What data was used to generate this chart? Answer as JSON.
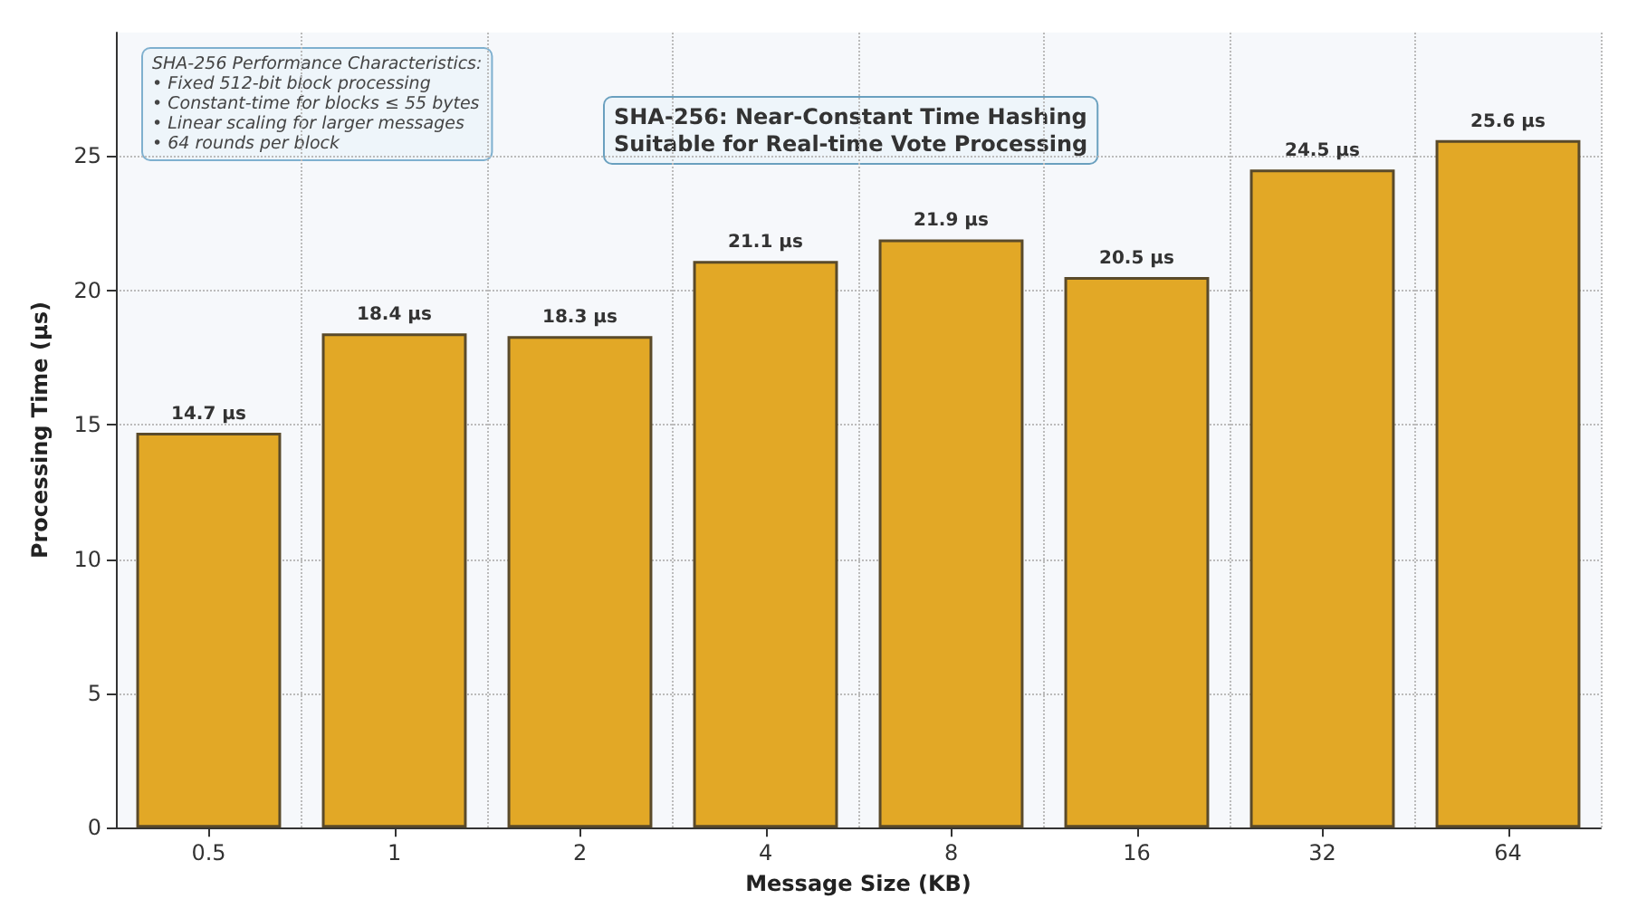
{
  "chart_data": {
    "type": "bar",
    "xlabel": "Message Size (KB)",
    "ylabel": "Processing Time (μs)",
    "categories": [
      "0.5",
      "1",
      "2",
      "4",
      "8",
      "16",
      "32",
      "64"
    ],
    "values": [
      14.7,
      18.4,
      18.3,
      21.1,
      21.9,
      20.5,
      24.5,
      25.6
    ],
    "value_labels": [
      "14.7 μs",
      "18.4 μs",
      "18.3 μs",
      "21.1 μs",
      "21.9 μs",
      "20.5 μs",
      "24.5 μs",
      "25.6 μs"
    ],
    "color": "#e2a826",
    "ylim": [
      0,
      29.6
    ],
    "yticks": [
      0,
      5,
      10,
      15,
      20,
      25
    ],
    "grid": true,
    "annotations": [
      "SHA-256 Performance Characteristics:\n• Fixed 512-bit block processing\n• Constant-time for blocks ≤ 55 bytes\n• Linear scaling for larger messages\n• 64 rounds per block",
      "SHA-256: Near-Constant Time Hashing\nSuitable for Real-time Vote Processing"
    ]
  }
}
